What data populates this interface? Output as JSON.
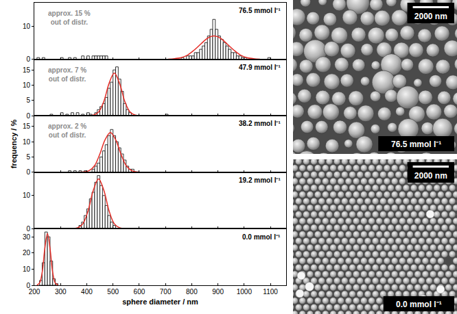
{
  "chart_data": [
    {
      "type": "histogram",
      "annotation": "76.5 mmol l⁻¹",
      "note": [
        "approx. 15 %",
        "out of distr."
      ],
      "bins": [
        210,
        220,
        230,
        240,
        250,
        260,
        270,
        280,
        290,
        300,
        310,
        320,
        330,
        340,
        350,
        360,
        370,
        380,
        390,
        400,
        410,
        420,
        430,
        440,
        450,
        460,
        470,
        480,
        490,
        500,
        510,
        520,
        530,
        540,
        550,
        560,
        570,
        580,
        590,
        600,
        610,
        620,
        630,
        640,
        650,
        660,
        670,
        680,
        690,
        700,
        710,
        720,
        730,
        740,
        750,
        760,
        770,
        780,
        790,
        800,
        810,
        820,
        830,
        840,
        850,
        860,
        870,
        880,
        890,
        900,
        910,
        920,
        930,
        940,
        950,
        960,
        970,
        980,
        990,
        1000,
        1010,
        1020,
        1030,
        1040,
        1050,
        1060,
        1070,
        1080,
        1090,
        1100
      ],
      "counts": [
        0.5,
        0,
        0.5,
        0,
        0,
        0,
        0,
        0,
        0,
        0.5,
        0,
        0,
        0.5,
        0,
        0.5,
        0,
        0,
        1,
        0,
        1,
        0,
        1,
        1,
        1,
        1,
        1,
        1,
        0,
        0,
        0,
        0,
        0,
        0,
        0,
        0,
        0,
        0,
        0,
        0,
        0,
        0,
        0,
        0,
        0,
        0,
        0,
        0,
        0,
        0,
        0,
        0,
        0,
        0,
        0,
        0,
        0.5,
        0,
        1,
        1,
        1,
        2,
        2,
        3,
        4,
        5,
        7,
        9,
        12,
        9,
        7,
        6,
        5,
        4,
        3,
        2,
        2,
        1,
        1,
        0.5,
        0.5,
        0,
        0,
        0,
        0,
        0,
        0,
        0,
        0,
        0.5
      ],
      "color": "#ffffff",
      "fit": {
        "x": [
          710,
          735,
          760,
          785,
          810,
          835,
          860,
          885,
          910,
          935,
          960,
          985,
          1010,
          1035,
          1060
        ],
        "y": [
          0,
          0.2,
          0.5,
          1.3,
          2.8,
          4.6,
          6.3,
          7,
          6.3,
          4.6,
          2.8,
          1.3,
          0.5,
          0.2,
          0
        ],
        "color": "#e52d27"
      },
      "xlim": [
        200,
        1160
      ],
      "xticks": [
        200,
        300,
        400,
        500,
        600,
        700,
        800,
        900,
        1000,
        1100
      ],
      "ylim": [
        0,
        17
      ],
      "yticks": [
        0,
        10
      ],
      "grid": false
    },
    {
      "type": "histogram",
      "annotation": "47.9 mmol l⁻¹",
      "note": [
        "approx. 7 %",
        "out of distr."
      ],
      "bins": [
        250,
        260,
        270,
        280,
        290,
        300,
        310,
        320,
        330,
        340,
        350,
        360,
        370,
        380,
        390,
        400,
        410,
        420,
        430,
        440,
        450,
        460,
        470,
        480,
        490,
        500,
        510,
        520,
        530,
        540,
        550,
        560,
        570,
        580,
        590,
        600,
        610,
        620,
        630,
        640,
        650,
        660,
        670,
        680,
        690,
        700,
        710
      ],
      "counts": [
        0,
        0.5,
        0,
        0,
        0,
        1,
        0,
        0.5,
        0,
        1,
        0,
        1,
        0,
        0.5,
        0,
        1,
        0.5,
        0,
        1,
        2,
        3,
        4,
        6,
        9,
        11,
        15,
        16,
        12,
        8,
        4,
        2,
        1,
        0,
        0,
        0,
        0,
        0,
        0,
        0,
        0,
        0,
        0,
        0,
        0,
        0,
        0.5
      ],
      "color": "#ffffff",
      "fit": {
        "x": [
          405,
          425,
          445,
          465,
          485,
          505,
          525,
          545,
          565,
          585,
          605
        ],
        "y": [
          0,
          0.2,
          1.2,
          4.7,
          10.6,
          14,
          10.6,
          4.7,
          1.2,
          0.2,
          0
        ],
        "color": "#e52d27"
      },
      "xlim": [
        200,
        1160
      ],
      "xticks": [
        200,
        300,
        400,
        500,
        600,
        700,
        800,
        900,
        1000,
        1100
      ],
      "ylim": [
        0,
        18.5
      ],
      "yticks": [
        0,
        5,
        10,
        15
      ],
      "grid": false
    },
    {
      "type": "histogram",
      "annotation": "38.2 mmol l⁻¹",
      "note": [
        "approx. 2 %",
        "out of distr."
      ],
      "ylabel": "frequency / %",
      "bins": [
        330,
        340,
        350,
        360,
        370,
        380,
        390,
        400,
        410,
        420,
        430,
        440,
        450,
        460,
        470,
        480,
        490,
        500,
        510,
        520,
        530,
        540,
        550,
        560,
        570,
        580
      ],
      "counts": [
        0.5,
        0,
        0.5,
        0,
        0.5,
        0,
        0.5,
        0,
        0,
        1,
        2,
        3,
        5,
        7,
        9,
        12,
        14,
        12,
        10,
        8,
        6,
        4,
        2,
        1,
        1
      ],
      "color": "#ffffff",
      "fit": {
        "x": [
          370,
          390,
          410,
          430,
          450,
          470,
          490,
          510,
          530,
          550,
          570,
          590,
          610,
          650,
          700
        ],
        "y": [
          0,
          0.1,
          0.6,
          2.2,
          6,
          10.7,
          13,
          10.7,
          6,
          2.2,
          0.6,
          0.1,
          0,
          0,
          0
        ],
        "color": "#e52d27"
      },
      "xlim": [
        200,
        1160
      ],
      "xticks": [
        200,
        300,
        400,
        500,
        600,
        700,
        800,
        900,
        1000,
        1100
      ],
      "ylim": [
        0,
        18.5
      ],
      "yticks": [
        0,
        5,
        10,
        15
      ],
      "grid": false
    },
    {
      "type": "histogram",
      "annotation": "19.2 mmol l⁻¹",
      "bins": [
        370,
        380,
        390,
        400,
        410,
        420,
        430,
        440,
        450,
        460,
        470,
        480,
        490,
        500,
        510
      ],
      "counts": [
        1,
        2,
        4,
        6,
        9,
        11,
        14,
        16,
        13,
        10,
        7,
        4,
        2,
        1
      ],
      "color": "#ffffff",
      "fit": {
        "x": [
          345,
          365,
          385,
          405,
          425,
          445,
          465,
          485,
          505,
          525,
          545
        ],
        "y": [
          0,
          0.3,
          1.5,
          5.4,
          11.6,
          15,
          11.6,
          5.4,
          1.5,
          0.3,
          0
        ],
        "color": "#e52d27"
      },
      "xlim": [
        200,
        1160
      ],
      "xticks": [
        200,
        300,
        400,
        500,
        600,
        700,
        800,
        900,
        1000,
        1100
      ],
      "ylim": [
        0,
        17
      ],
      "yticks": [
        0,
        10
      ],
      "grid": false
    },
    {
      "type": "histogram",
      "annotation": "0.0 mmol l⁻¹",
      "xlabel": "sphere diameter / nm",
      "bins": [
        220,
        230,
        240,
        250,
        260,
        270,
        280,
        290
      ],
      "counts": [
        3,
        14,
        33,
        30,
        15,
        4,
        1
      ],
      "color": "#ffffff",
      "fit": {
        "x": [
          210,
          220,
          230,
          240,
          250,
          260,
          270,
          280,
          290
        ],
        "y": [
          0.1,
          1.4,
          8,
          22.6,
          32,
          22.6,
          8,
          1.4,
          0.1
        ],
        "color": "#e52d27"
      },
      "xlim": [
        200,
        1160
      ],
      "xticks": [
        200,
        300,
        400,
        500,
        600,
        700,
        800,
        900,
        1000,
        1100
      ],
      "ylim": [
        0,
        35
      ],
      "yticks": [
        0,
        10,
        20,
        30
      ],
      "grid": false
    }
  ],
  "micrographs": [
    {
      "label": "76.5 mmol l⁻¹",
      "scale_bar": "2000 nm"
    },
    {
      "label": "0.0 mmol l⁻¹",
      "scale_bar": "2000 nm"
    }
  ]
}
